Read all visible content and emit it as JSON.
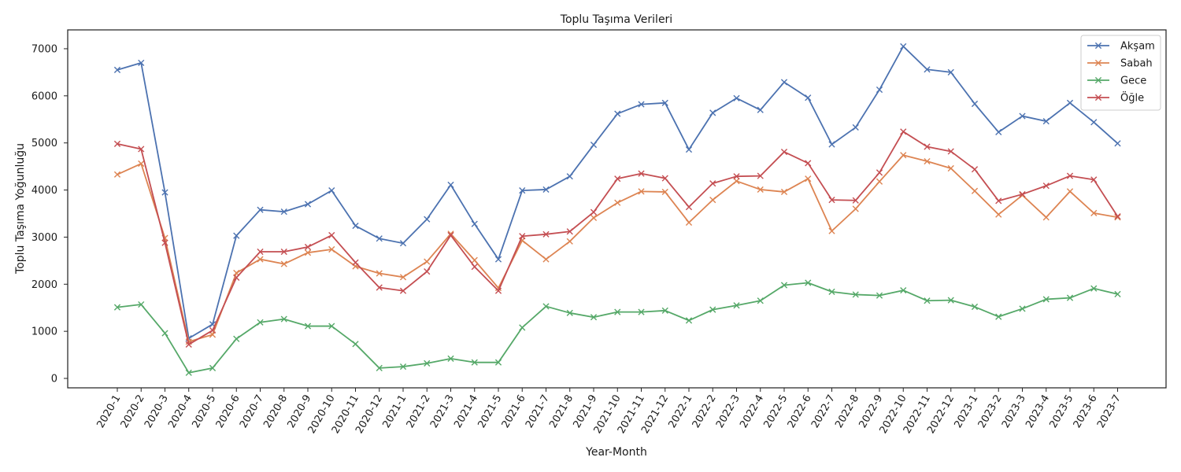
{
  "chart_data": {
    "type": "line",
    "title": "Toplu Taşıma Verileri",
    "xlabel": "Year-Month",
    "ylabel": "Toplu Taşıma Yoğunluğu",
    "ylim": [
      -200,
      7400
    ],
    "yticks": [
      0,
      1000,
      2000,
      3000,
      4000,
      5000,
      6000,
      7000
    ],
    "grid": false,
    "legend_position": "top-right",
    "marker": "x",
    "categories": [
      "2020-1",
      "2020-2",
      "2020-3",
      "2020-4",
      "2020-5",
      "2020-6",
      "2020-7",
      "2020-8",
      "2020-9",
      "2020-10",
      "2020-11",
      "2020-12",
      "2021-1",
      "2021-2",
      "2021-3",
      "2021-4",
      "2021-5",
      "2021-6",
      "2021-7",
      "2021-8",
      "2021-9",
      "2021-10",
      "2021-11",
      "2021-12",
      "2022-1",
      "2022-2",
      "2022-3",
      "2022-4",
      "2022-5",
      "2022-6",
      "2022-7",
      "2022-8",
      "2022-9",
      "2022-10",
      "2022-11",
      "2022-12",
      "2023-1",
      "2023-2",
      "2023-3",
      "2023-4",
      "2023-5",
      "2023-6",
      "2023-7"
    ],
    "series": [
      {
        "name": "Akşam",
        "color": "#4c72b0",
        "values": [
          6550,
          6700,
          3950,
          850,
          1150,
          3030,
          3580,
          3540,
          3700,
          3990,
          3240,
          2970,
          2870,
          3380,
          4110,
          3280,
          2530,
          3990,
          4010,
          4290,
          4960,
          5620,
          5820,
          5850,
          4860,
          5640,
          5950,
          5700,
          6290,
          5960,
          4970,
          5330,
          6130,
          7050,
          6560,
          6500,
          5830,
          5230,
          5570,
          5460,
          5850,
          5440,
          4990
        ]
      },
      {
        "name": "Sabah",
        "color": "#dd8452",
        "values": [
          4330,
          4560,
          2980,
          780,
          930,
          2240,
          2530,
          2430,
          2670,
          2740,
          2380,
          2230,
          2150,
          2480,
          3070,
          2510,
          1920,
          2930,
          2530,
          2910,
          3410,
          3730,
          3970,
          3960,
          3310,
          3790,
          4190,
          4010,
          3960,
          4240,
          3130,
          3600,
          4180,
          4740,
          4610,
          4460,
          3980,
          3480,
          3890,
          3420,
          3970,
          3510,
          3420
        ]
      },
      {
        "name": "Gece",
        "color": "#55a868",
        "values": [
          1510,
          1570,
          960,
          120,
          220,
          840,
          1190,
          1260,
          1110,
          1110,
          730,
          220,
          250,
          320,
          420,
          340,
          340,
          1080,
          1530,
          1390,
          1300,
          1410,
          1410,
          1440,
          1230,
          1460,
          1550,
          1650,
          1980,
          2030,
          1840,
          1780,
          1760,
          1870,
          1650,
          1660,
          1520,
          1310,
          1480,
          1680,
          1710,
          1910,
          1790
        ]
      },
      {
        "name": "Öğle",
        "color": "#c44e52",
        "values": [
          4980,
          4870,
          2880,
          720,
          1020,
          2140,
          2690,
          2690,
          2790,
          3040,
          2460,
          1930,
          1860,
          2270,
          3040,
          2370,
          1860,
          3020,
          3060,
          3120,
          3530,
          4240,
          4350,
          4250,
          3640,
          4140,
          4290,
          4300,
          4810,
          4570,
          3790,
          3780,
          4370,
          5240,
          4920,
          4820,
          4440,
          3770,
          3910,
          4090,
          4300,
          4220,
          3440
        ]
      }
    ]
  }
}
